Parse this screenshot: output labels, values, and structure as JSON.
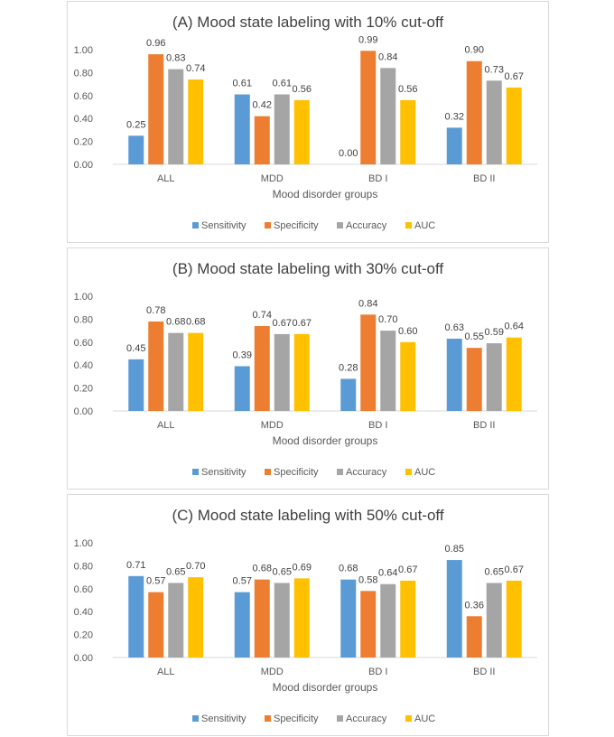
{
  "series_meta": [
    {
      "name": "Sensitivity",
      "color": "#5B9BD5"
    },
    {
      "name": "Specificity",
      "color": "#ED7D31"
    },
    {
      "name": "Accuracy",
      "color": "#A5A5A5"
    },
    {
      "name": "AUC",
      "color": "#FFC000"
    }
  ],
  "chart_data": [
    {
      "type": "bar",
      "title": "(A) Mood state labeling with 10% cut-off",
      "xlabel": "Mood disorder groups",
      "ylabel": "",
      "ylim": [
        0,
        1
      ],
      "yticks": [
        "0.00",
        "0.20",
        "0.40",
        "0.60",
        "0.80",
        "1.00"
      ],
      "grid": false,
      "legend": "bottom",
      "categories": [
        "ALL",
        "MDD",
        "BD I",
        "BD II"
      ],
      "series": [
        {
          "name": "Sensitivity",
          "values": [
            0.25,
            0.61,
            0.0,
            0.32
          ],
          "labels": [
            "0.25",
            "0.61",
            "0.00",
            "0.32"
          ]
        },
        {
          "name": "Specificity",
          "values": [
            0.96,
            0.42,
            0.99,
            0.9
          ],
          "labels": [
            "0.96",
            "0.42",
            "0.99",
            "0.90"
          ]
        },
        {
          "name": "Accuracy",
          "values": [
            0.83,
            0.61,
            0.84,
            0.73
          ],
          "labels": [
            "0.83",
            "0.61",
            "0.84",
            "0.73"
          ]
        },
        {
          "name": "AUC",
          "values": [
            0.74,
            0.56,
            0.56,
            0.67
          ],
          "labels": [
            "0.74",
            "0.56",
            "0.56",
            "0.67"
          ]
        }
      ]
    },
    {
      "type": "bar",
      "title": "(B) Mood state labeling with 30% cut-off",
      "xlabel": "Mood disorder groups",
      "ylabel": "",
      "ylim": [
        0,
        1
      ],
      "yticks": [
        "0.00",
        "0.20",
        "0.40",
        "0.60",
        "0.80",
        "1.00"
      ],
      "grid": false,
      "legend": "bottom",
      "categories": [
        "ALL",
        "MDD",
        "BD I",
        "BD II"
      ],
      "series": [
        {
          "name": "Sensitivity",
          "values": [
            0.45,
            0.39,
            0.28,
            0.63
          ],
          "labels": [
            "0.45",
            "0.39",
            "0.28",
            "0.63"
          ]
        },
        {
          "name": "Specificity",
          "values": [
            0.78,
            0.74,
            0.84,
            0.55
          ],
          "labels": [
            "0.78",
            "0.74",
            "0.84",
            "0.55"
          ]
        },
        {
          "name": "Accuracy",
          "values": [
            0.68,
            0.67,
            0.7,
            0.59
          ],
          "labels": [
            "0.68",
            "0.67",
            "0.70",
            "0.59"
          ]
        },
        {
          "name": "AUC",
          "values": [
            0.68,
            0.67,
            0.6,
            0.64
          ],
          "labels": [
            "0.68",
            "0.67",
            "0.60",
            "0.64"
          ]
        }
      ]
    },
    {
      "type": "bar",
      "title": "(C) Mood state labeling with 50% cut-off",
      "xlabel": "Mood disorder groups",
      "ylabel": "",
      "ylim": [
        0,
        1
      ],
      "yticks": [
        "0.00",
        "0.20",
        "0.40",
        "0.60",
        "0.80",
        "1.00"
      ],
      "grid": false,
      "legend": "bottom",
      "categories": [
        "ALL",
        "MDD",
        "BD I",
        "BD II"
      ],
      "series": [
        {
          "name": "Sensitivity",
          "values": [
            0.71,
            0.57,
            0.68,
            0.85
          ],
          "labels": [
            "0.71",
            "0.57",
            "0.68",
            "0.85"
          ]
        },
        {
          "name": "Specificity",
          "values": [
            0.57,
            0.68,
            0.58,
            0.36
          ],
          "labels": [
            "0.57",
            "0.68",
            "0.58",
            "0.36"
          ]
        },
        {
          "name": "Accuracy",
          "values": [
            0.65,
            0.65,
            0.64,
            0.65
          ],
          "labels": [
            "0.65",
            "0.65",
            "0.64",
            "0.65"
          ]
        },
        {
          "name": "AUC",
          "values": [
            0.7,
            0.69,
            0.67,
            0.67
          ],
          "labels": [
            "0.70",
            "0.69",
            "0.67",
            "0.67"
          ]
        }
      ]
    }
  ]
}
